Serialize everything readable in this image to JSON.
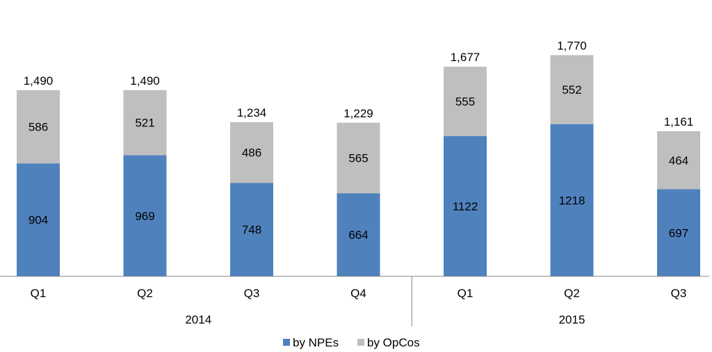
{
  "chart_data": {
    "type": "bar",
    "stacked": true,
    "categories": [
      "Q1",
      "Q2",
      "Q3",
      "Q4",
      "Q1",
      "Q2",
      "Q3"
    ],
    "groups": [
      {
        "label": "2014",
        "count": 4
      },
      {
        "label": "2015",
        "count": 3
      }
    ],
    "series": [
      {
        "name": "by NPEs",
        "values": [
          904,
          969,
          748,
          664,
          1122,
          1218,
          697
        ],
        "color": "#4f81bd"
      },
      {
        "name": "by OpCos",
        "values": [
          586,
          521,
          486,
          565,
          555,
          552,
          464
        ],
        "color": "#bfbfbf"
      }
    ],
    "totals": [
      "1,490",
      "1,490",
      "1,234",
      "1,229",
      "1,677",
      "1,770",
      "1,161"
    ],
    "ylim": [
      0,
      1930
    ],
    "grid": false,
    "legend": "bottom-center"
  }
}
